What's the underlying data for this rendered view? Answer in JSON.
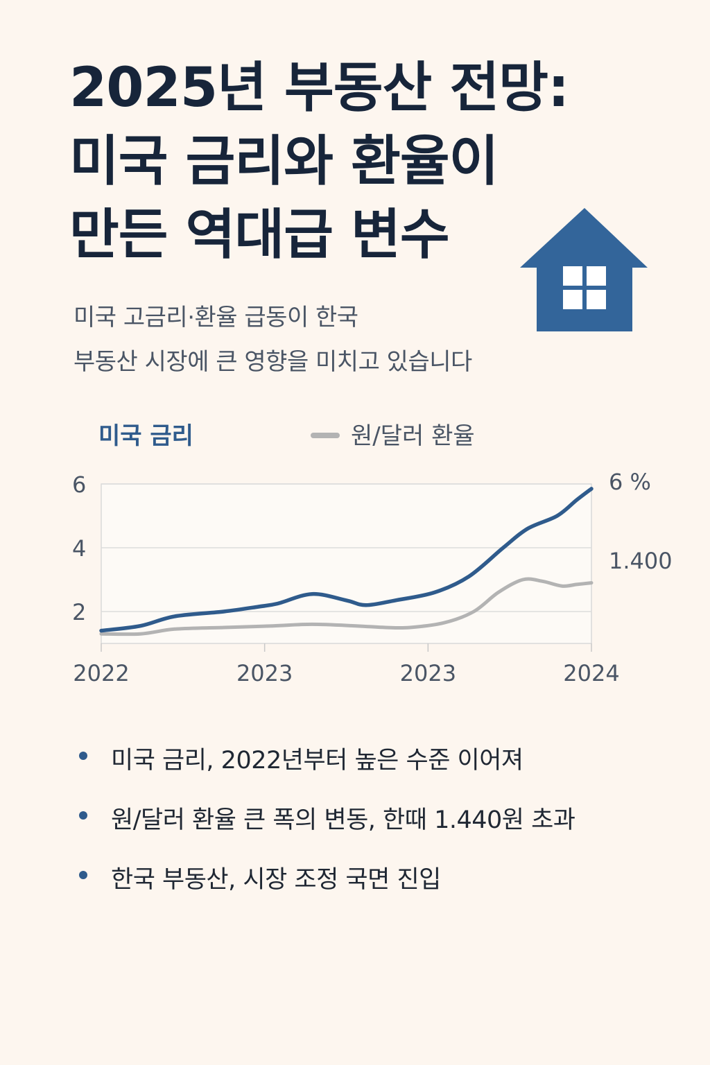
{
  "title": {
    "line1": "2025년 부동산 전망:",
    "line2": "미국 금리와 환율이",
    "line3": "만든 역대급 변수"
  },
  "subtitle": {
    "line1": "미국 고금리·환율 급동이 한국",
    "line2": "부동산 시장에 큰 영향을 미치고 있습니다"
  },
  "icons": {
    "house": "house-icon"
  },
  "colors": {
    "background": "#fdf6ef",
    "title": "#17253a",
    "rate_line": "#2f5b8c",
    "fx_line": "#b3b3b3",
    "grid": "#dcdcdc",
    "house": "#33659a"
  },
  "chart_data": {
    "type": "line",
    "x_ticks": [
      "2022",
      "2023",
      "2023",
      "2024"
    ],
    "y_ticks": [
      "6",
      "4",
      "2"
    ],
    "ylim": [
      1,
      6
    ],
    "grid": true,
    "legend_position": "top",
    "series": [
      {
        "name": "미국 금리",
        "color": "#2f5b8c",
        "end_label": "6 %",
        "points": [
          [
            0,
            1.4
          ],
          [
            0.08,
            1.55
          ],
          [
            0.15,
            1.85
          ],
          [
            0.25,
            2.0
          ],
          [
            0.32,
            2.15
          ],
          [
            0.36,
            2.25
          ],
          [
            0.43,
            2.55
          ],
          [
            0.5,
            2.35
          ],
          [
            0.54,
            2.2
          ],
          [
            0.6,
            2.35
          ],
          [
            0.68,
            2.6
          ],
          [
            0.75,
            3.1
          ],
          [
            0.82,
            4.0
          ],
          [
            0.87,
            4.6
          ],
          [
            0.93,
            5.0
          ],
          [
            0.97,
            5.5
          ],
          [
            1.0,
            5.85
          ]
        ]
      },
      {
        "name": "원/달러 환율",
        "color": "#b3b3b3",
        "end_label": "1.400",
        "points": [
          [
            0,
            1.3
          ],
          [
            0.08,
            1.3
          ],
          [
            0.15,
            1.45
          ],
          [
            0.25,
            1.5
          ],
          [
            0.35,
            1.55
          ],
          [
            0.43,
            1.6
          ],
          [
            0.52,
            1.55
          ],
          [
            0.58,
            1.5
          ],
          [
            0.63,
            1.5
          ],
          [
            0.7,
            1.65
          ],
          [
            0.76,
            2.0
          ],
          [
            0.81,
            2.6
          ],
          [
            0.86,
            3.0
          ],
          [
            0.9,
            2.95
          ],
          [
            0.94,
            2.8
          ],
          [
            0.97,
            2.85
          ],
          [
            1.0,
            2.9
          ]
        ]
      }
    ]
  },
  "bullets": [
    "미국 금리, 2022년부터 높은 수준 이어져",
    "원/달러 환율 큰 폭의 변동, 한때 1.440원 초과",
    "한국 부동산, 시장 조정 국면 진입"
  ]
}
